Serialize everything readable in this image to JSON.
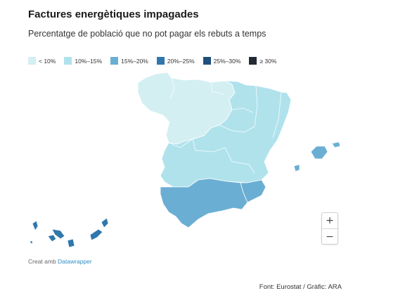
{
  "header": {
    "title": "Factures energètiques impagades",
    "subtitle": "Percentatge de població que no pot pagar els rebuts a temps"
  },
  "legend": {
    "items": [
      {
        "label": "< 10%",
        "color": "#d3eff2"
      },
      {
        "label": "10%–15%",
        "color": "#b0e2ec"
      },
      {
        "label": "15%–20%",
        "color": "#6baed3"
      },
      {
        "label": "20%–25%",
        "color": "#2f77ad"
      },
      {
        "label": "25%–30%",
        "color": "#1f4f7e"
      },
      {
        "label": "≥ 30%",
        "color": "#222a33"
      }
    ]
  },
  "map": {
    "regions": [
      {
        "name": "Galicia-Castilla y León-País Vasco",
        "bin": "< 10%"
      },
      {
        "name": "Catalunya-Aragó-Navarra",
        "bin": "10%–15%"
      },
      {
        "name": "Andalusia",
        "bin": "15%–20%"
      },
      {
        "name": "Múrcia",
        "bin": "15%–20%"
      },
      {
        "name": "Illes Balears",
        "bin": "15%–20%"
      },
      {
        "name": "Canàries",
        "bin": "20%–25%"
      }
    ]
  },
  "zoom": {
    "in_label": "+",
    "out_label": "−"
  },
  "credit": {
    "prefix": "Creat amb ",
    "link_label": "Datawrapper"
  },
  "source": "Font: Eurostat / Gràfic: ARA"
}
